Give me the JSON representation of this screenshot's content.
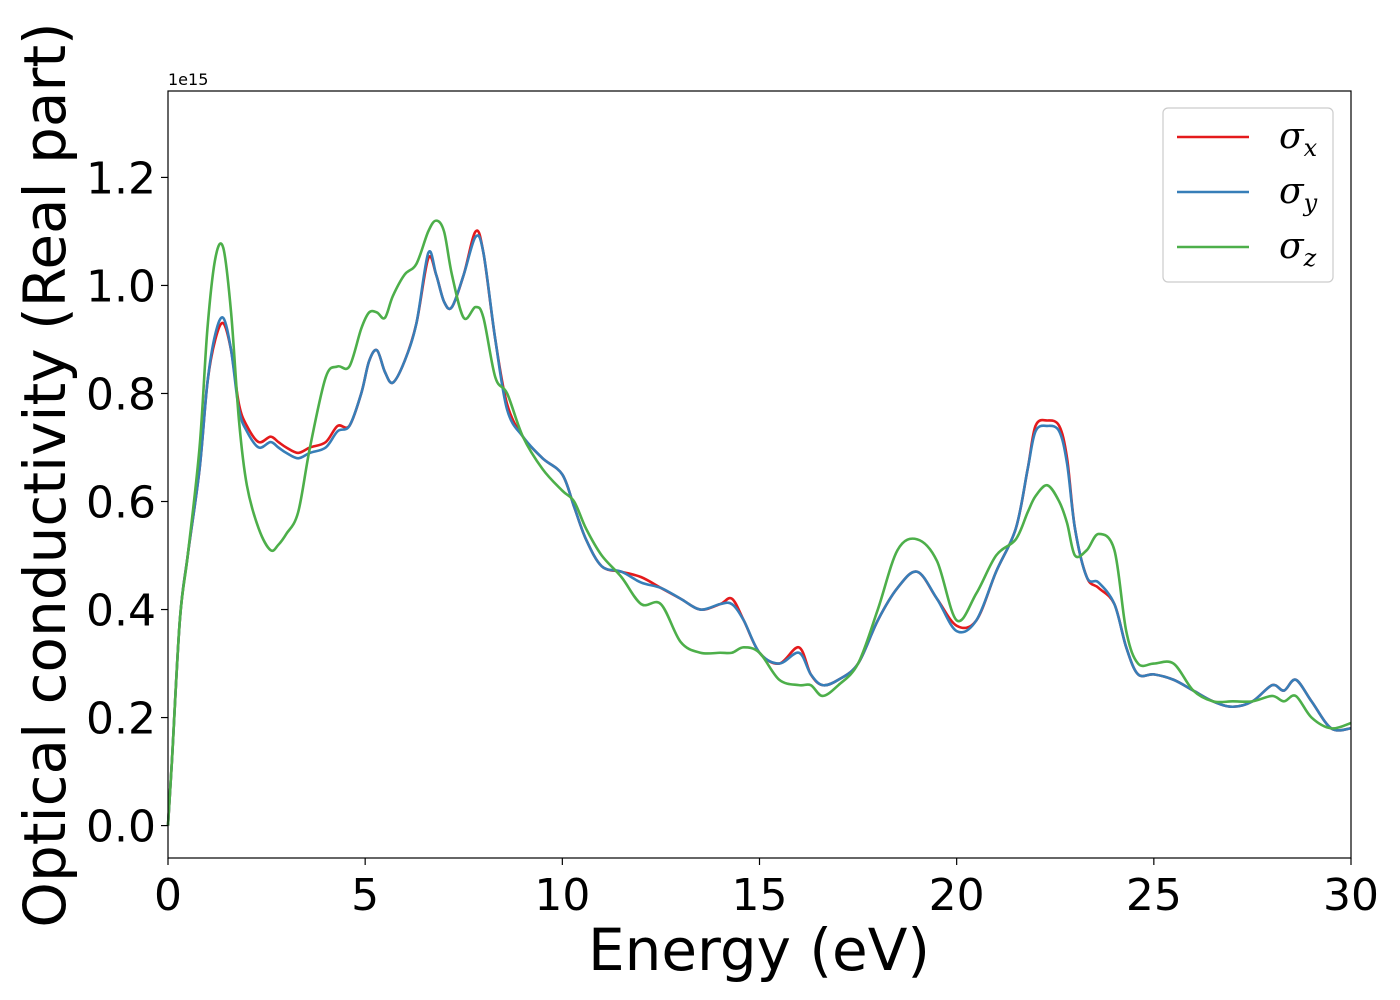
{
  "chart_data": {
    "type": "line",
    "title": "",
    "xlabel": "Energy (eV)",
    "ylabel": "Optical conductivity (Real part)",
    "y_offset_label": "1e15",
    "xlim": [
      0,
      30
    ],
    "ylim": [
      -0.06,
      1.36
    ],
    "xticks": [
      0,
      5,
      10,
      15,
      20,
      25,
      30
    ],
    "xtick_labels": [
      "0",
      "5",
      "10",
      "15",
      "20",
      "25",
      "30"
    ],
    "yticks": [
      0.0,
      0.2,
      0.4,
      0.6,
      0.8,
      1.0,
      1.2
    ],
    "ytick_labels": [
      "0.0",
      "0.2",
      "0.4",
      "0.6",
      "0.8",
      "1.0",
      "1.2"
    ],
    "grid": false,
    "legend_position": "top-right",
    "series": [
      {
        "name": "σx",
        "legend": {
          "base": "σ",
          "sub": "x"
        },
        "color": "#e41a1c",
        "x": [
          0,
          0.1,
          0.3,
          0.5,
          0.8,
          1.0,
          1.2,
          1.4,
          1.6,
          1.8,
          2.0,
          2.3,
          2.6,
          2.8,
          3.0,
          3.3,
          3.6,
          4.0,
          4.3,
          4.6,
          4.9,
          5.1,
          5.3,
          5.5,
          5.7,
          6.0,
          6.3,
          6.6,
          6.8,
          7.0,
          7.2,
          7.5,
          7.8,
          8.0,
          8.3,
          8.6,
          9.0,
          9.5,
          10.0,
          10.3,
          10.6,
          11.0,
          11.5,
          12.0,
          12.5,
          13.0,
          13.5,
          14.0,
          14.3,
          14.6,
          15.0,
          15.5,
          16.0,
          16.3,
          16.6,
          17.0,
          17.5,
          18.0,
          18.5,
          19.0,
          19.5,
          20.0,
          20.5,
          21.0,
          21.5,
          21.8,
          22.0,
          22.3,
          22.6,
          22.8,
          23.0,
          23.3,
          23.6,
          24.0,
          24.3,
          24.6,
          25.0,
          25.5,
          26.0,
          26.5,
          27.0,
          27.5,
          28.0,
          28.3,
          28.6,
          29.0,
          29.5,
          30.0
        ],
        "y": [
          0.0,
          0.12,
          0.38,
          0.5,
          0.66,
          0.82,
          0.9,
          0.93,
          0.88,
          0.78,
          0.74,
          0.71,
          0.72,
          0.71,
          0.7,
          0.69,
          0.7,
          0.71,
          0.74,
          0.74,
          0.8,
          0.86,
          0.88,
          0.84,
          0.82,
          0.86,
          0.93,
          1.05,
          1.02,
          0.97,
          0.96,
          1.02,
          1.1,
          1.06,
          0.9,
          0.78,
          0.72,
          0.68,
          0.65,
          0.59,
          0.53,
          0.48,
          0.47,
          0.46,
          0.44,
          0.42,
          0.4,
          0.41,
          0.42,
          0.38,
          0.32,
          0.3,
          0.33,
          0.28,
          0.26,
          0.27,
          0.3,
          0.38,
          0.44,
          0.47,
          0.42,
          0.37,
          0.38,
          0.47,
          0.55,
          0.66,
          0.74,
          0.75,
          0.74,
          0.68,
          0.55,
          0.46,
          0.44,
          0.41,
          0.33,
          0.28,
          0.28,
          0.27,
          0.25,
          0.23,
          0.22,
          0.23,
          0.26,
          0.25,
          0.27,
          0.23,
          0.18,
          0.18
        ]
      },
      {
        "name": "σy",
        "legend": {
          "base": "σ",
          "sub": "y"
        },
        "color": "#377eb8",
        "x": [
          0,
          0.1,
          0.3,
          0.5,
          0.8,
          1.0,
          1.2,
          1.4,
          1.6,
          1.8,
          2.0,
          2.3,
          2.6,
          2.8,
          3.0,
          3.3,
          3.6,
          4.0,
          4.3,
          4.6,
          4.9,
          5.1,
          5.3,
          5.5,
          5.7,
          6.0,
          6.3,
          6.6,
          6.8,
          7.0,
          7.2,
          7.5,
          7.8,
          8.0,
          8.3,
          8.6,
          9.0,
          9.5,
          10.0,
          10.3,
          10.6,
          11.0,
          11.5,
          12.0,
          12.5,
          13.0,
          13.5,
          14.0,
          14.3,
          14.6,
          15.0,
          15.5,
          16.0,
          16.3,
          16.6,
          17.0,
          17.5,
          18.0,
          18.5,
          19.0,
          19.5,
          20.0,
          20.5,
          21.0,
          21.5,
          21.8,
          22.0,
          22.3,
          22.6,
          22.8,
          23.0,
          23.3,
          23.6,
          24.0,
          24.3,
          24.6,
          25.0,
          25.5,
          26.0,
          26.5,
          27.0,
          27.5,
          28.0,
          28.3,
          28.6,
          29.0,
          29.5,
          30.0
        ],
        "y": [
          0.0,
          0.12,
          0.38,
          0.5,
          0.66,
          0.82,
          0.91,
          0.94,
          0.88,
          0.77,
          0.73,
          0.7,
          0.71,
          0.7,
          0.69,
          0.68,
          0.69,
          0.7,
          0.73,
          0.74,
          0.8,
          0.86,
          0.88,
          0.84,
          0.82,
          0.86,
          0.93,
          1.06,
          1.02,
          0.97,
          0.96,
          1.02,
          1.09,
          1.06,
          0.9,
          0.77,
          0.72,
          0.68,
          0.65,
          0.59,
          0.53,
          0.48,
          0.47,
          0.45,
          0.44,
          0.42,
          0.4,
          0.41,
          0.41,
          0.38,
          0.32,
          0.3,
          0.32,
          0.28,
          0.26,
          0.27,
          0.3,
          0.38,
          0.44,
          0.47,
          0.42,
          0.36,
          0.38,
          0.47,
          0.55,
          0.66,
          0.73,
          0.74,
          0.73,
          0.67,
          0.55,
          0.46,
          0.45,
          0.41,
          0.33,
          0.28,
          0.28,
          0.27,
          0.25,
          0.23,
          0.22,
          0.23,
          0.26,
          0.25,
          0.27,
          0.23,
          0.18,
          0.18
        ]
      },
      {
        "name": "σz",
        "legend": {
          "base": "σ",
          "sub": "z"
        },
        "color": "#4daf4a",
        "x": [
          0,
          0.1,
          0.3,
          0.5,
          0.8,
          1.0,
          1.2,
          1.4,
          1.6,
          1.8,
          2.0,
          2.3,
          2.6,
          2.8,
          3.0,
          3.3,
          3.6,
          4.0,
          4.3,
          4.6,
          4.9,
          5.1,
          5.3,
          5.5,
          5.7,
          6.0,
          6.3,
          6.6,
          6.8,
          7.0,
          7.2,
          7.5,
          7.8,
          8.0,
          8.3,
          8.6,
          9.0,
          9.5,
          10.0,
          10.3,
          10.6,
          11.0,
          11.5,
          12.0,
          12.5,
          13.0,
          13.5,
          14.0,
          14.3,
          14.6,
          15.0,
          15.5,
          16.0,
          16.3,
          16.6,
          17.0,
          17.5,
          18.0,
          18.5,
          19.0,
          19.5,
          20.0,
          20.5,
          21.0,
          21.5,
          21.8,
          22.0,
          22.3,
          22.6,
          22.8,
          23.0,
          23.3,
          23.6,
          24.0,
          24.3,
          24.6,
          25.0,
          25.5,
          26.0,
          26.5,
          27.0,
          27.5,
          28.0,
          28.3,
          28.6,
          29.0,
          29.5,
          30.0
        ],
        "y": [
          0.0,
          0.12,
          0.38,
          0.5,
          0.7,
          0.92,
          1.05,
          1.07,
          0.95,
          0.75,
          0.63,
          0.55,
          0.51,
          0.52,
          0.54,
          0.58,
          0.7,
          0.83,
          0.85,
          0.85,
          0.92,
          0.95,
          0.95,
          0.94,
          0.98,
          1.02,
          1.04,
          1.1,
          1.12,
          1.1,
          1.02,
          0.94,
          0.96,
          0.94,
          0.83,
          0.8,
          0.72,
          0.66,
          0.62,
          0.6,
          0.55,
          0.5,
          0.46,
          0.41,
          0.41,
          0.34,
          0.32,
          0.32,
          0.32,
          0.33,
          0.32,
          0.27,
          0.26,
          0.26,
          0.24,
          0.26,
          0.3,
          0.4,
          0.51,
          0.53,
          0.49,
          0.38,
          0.43,
          0.5,
          0.53,
          0.58,
          0.61,
          0.63,
          0.6,
          0.56,
          0.5,
          0.51,
          0.54,
          0.51,
          0.36,
          0.3,
          0.3,
          0.3,
          0.25,
          0.23,
          0.23,
          0.23,
          0.24,
          0.23,
          0.24,
          0.2,
          0.18,
          0.19
        ]
      }
    ]
  }
}
